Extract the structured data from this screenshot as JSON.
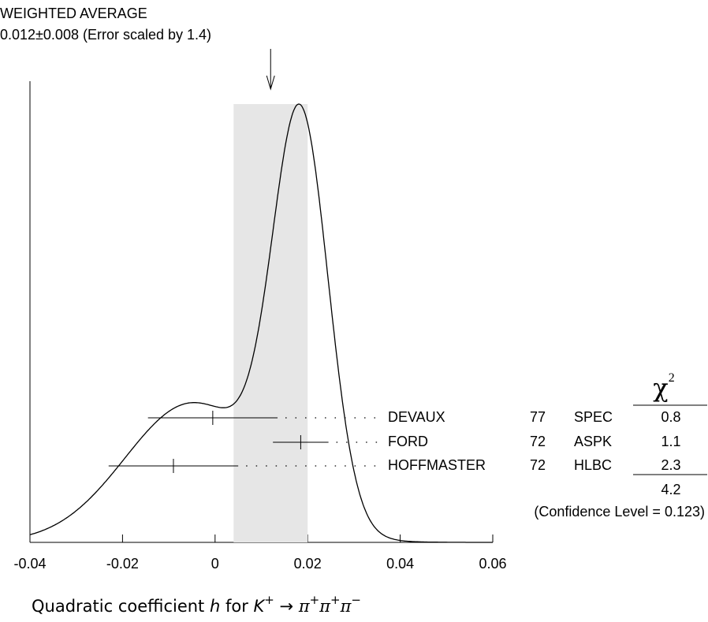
{
  "chart_data": {
    "type": "ideogram",
    "title": "WEIGHTED AVERAGE",
    "subtitle": "0.012±0.008 (Error scaled by 1.4)",
    "average": {
      "value": 0.012,
      "error": 0.008
    },
    "measurements": [
      {
        "author": "DEVAUX",
        "year": "77",
        "technique": "SPEC",
        "value": -0.0005,
        "error": 0.014,
        "chi2": 0.8
      },
      {
        "author": "FORD",
        "year": "72",
        "technique": "ASPK",
        "value": 0.0185,
        "error": 0.006,
        "chi2": 1.1
      },
      {
        "author": "HOFFMASTER",
        "year": "72",
        "technique": "HLBC",
        "value": -0.009,
        "error": 0.014,
        "chi2": 2.3
      }
    ],
    "chi2_header": [
      "χ",
      "2"
    ],
    "chi2_total": 4.2,
    "confidence_level": "(Confidence Level = 0.123)",
    "x_label": [
      "Quadratic coefficient ",
      "h",
      " for ",
      "K",
      "+",
      " → ",
      "π",
      "+",
      "π",
      "+",
      "π",
      "−"
    ],
    "xlim": [
      -0.04,
      0.06
    ],
    "xticks": [
      -0.04,
      -0.02,
      0,
      0.02,
      0.04,
      0.06
    ],
    "band_color": "#e6e6e6",
    "color": "#000000"
  }
}
